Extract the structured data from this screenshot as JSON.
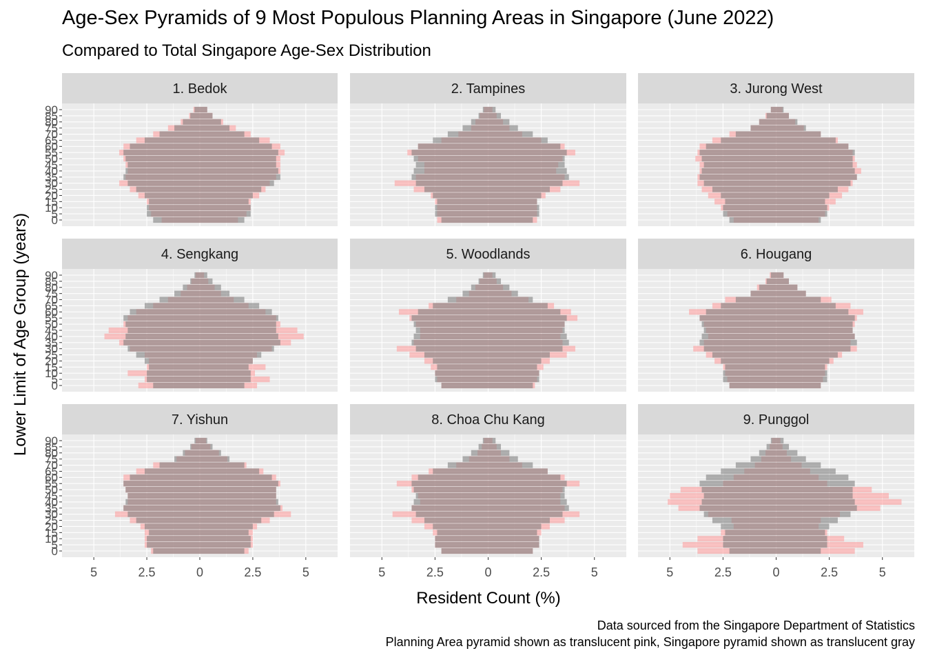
{
  "title": "Age-Sex Pyramids of 9 Most Populous Planning Areas in Singapore (June 2022)",
  "subtitle": "Compared to Total Singapore Age-Sex Distribution",
  "caption_lines": [
    "Data sourced from the Singapore Department of Statistics",
    "Planning Area pyramid shown as translucent pink, Singapore pyramid shown as translucent gray"
  ],
  "colors": {
    "area_fill": "#ff9999",
    "singapore_fill": "#808080",
    "overlap_fill": "#b08a8a",
    "panel_bg": "#ebebeb",
    "strip_bg": "#d9d9d9",
    "gridline": "#ffffff"
  },
  "chart_data": {
    "type": "bar",
    "orientation": "horizontal-pyramid",
    "xlabel": "Resident Count (%)",
    "ylabel": "Lower Limit of Age Group (years)",
    "xlim": [
      -6.5,
      6.5
    ],
    "x_ticks": [
      -5,
      -2.5,
      0,
      2.5,
      5
    ],
    "x_tick_labels": [
      "5",
      "2.5",
      "0",
      "2.5",
      "5"
    ],
    "age_groups": [
      0,
      5,
      10,
      15,
      20,
      25,
      30,
      35,
      40,
      45,
      50,
      55,
      60,
      65,
      70,
      75,
      80,
      85,
      90
    ],
    "y_tick_labels": [
      "0",
      "5",
      "10",
      "15",
      "20",
      "25",
      "30",
      "35",
      "40",
      "45",
      "50",
      "55",
      "60",
      "65",
      "70",
      "75",
      "80",
      "85",
      "90"
    ],
    "grid": true,
    "singapore": {
      "name": "Singapore",
      "left": [
        2.2,
        2.5,
        2.5,
        2.4,
        2.6,
        3.0,
        3.4,
        3.6,
        3.5,
        3.4,
        3.5,
        3.6,
        3.3,
        2.6,
        1.9,
        1.2,
        0.8,
        0.45,
        0.25
      ],
      "right": [
        2.1,
        2.4,
        2.4,
        2.3,
        2.5,
        2.9,
        3.5,
        3.8,
        3.7,
        3.6,
        3.6,
        3.7,
        3.4,
        2.8,
        2.1,
        1.4,
        1.0,
        0.6,
        0.35
      ]
    },
    "panels": [
      {
        "name": "1. Bedok",
        "left": [
          1.8,
          2.3,
          2.4,
          2.5,
          2.9,
          3.3,
          3.8,
          3.5,
          3.4,
          3.5,
          3.6,
          3.8,
          3.6,
          3.0,
          2.2,
          1.5,
          0.9,
          0.5,
          0.3
        ],
        "right": [
          1.8,
          2.2,
          2.4,
          2.4,
          2.8,
          3.1,
          3.3,
          3.6,
          3.8,
          3.8,
          3.8,
          4.0,
          3.8,
          3.3,
          2.4,
          1.7,
          1.1,
          0.6,
          0.35
        ]
      },
      {
        "name": "2. Tampines",
        "left": [
          2.4,
          2.4,
          2.4,
          2.5,
          2.7,
          3.5,
          4.4,
          3.4,
          3.0,
          3.0,
          3.3,
          3.8,
          3.3,
          2.2,
          1.4,
          0.8,
          0.6,
          0.4,
          0.2
        ],
        "right": [
          2.3,
          2.3,
          2.3,
          2.3,
          2.7,
          3.4,
          4.3,
          3.6,
          3.2,
          3.3,
          3.5,
          4.1,
          3.6,
          2.5,
          1.6,
          1.0,
          0.7,
          0.4,
          0.2
        ]
      },
      {
        "name": "3. Jurong West",
        "left": [
          2.0,
          2.3,
          2.6,
          2.9,
          3.2,
          3.5,
          3.7,
          3.7,
          3.6,
          3.6,
          3.8,
          3.7,
          3.6,
          3.0,
          2.2,
          1.2,
          0.8,
          0.5,
          0.25
        ],
        "right": [
          2.0,
          2.3,
          2.5,
          2.8,
          3.1,
          3.4,
          3.6,
          3.8,
          4.0,
          3.8,
          3.7,
          3.6,
          3.4,
          2.9,
          2.1,
          1.3,
          0.9,
          0.6,
          0.3
        ]
      },
      {
        "name": "4. Sengkang",
        "left": [
          2.9,
          2.6,
          3.4,
          2.5,
          2.4,
          2.6,
          3.3,
          3.8,
          4.5,
          4.3,
          3.6,
          3.4,
          3.0,
          2.2,
          1.5,
          0.9,
          0.6,
          0.4,
          0.2
        ],
        "right": [
          2.7,
          3.3,
          2.6,
          3.1,
          2.5,
          2.7,
          3.4,
          4.3,
          4.9,
          4.6,
          3.8,
          3.6,
          3.1,
          2.3,
          1.6,
          1.0,
          0.7,
          0.4,
          0.2
        ]
      },
      {
        "name": "5. Woodlands",
        "left": [
          2.2,
          2.4,
          2.5,
          2.7,
          3.0,
          3.7,
          4.3,
          3.5,
          3.2,
          3.2,
          3.4,
          3.7,
          4.2,
          2.8,
          1.5,
          0.9,
          0.6,
          0.4,
          0.2
        ],
        "right": [
          2.2,
          2.3,
          2.4,
          2.6,
          2.9,
          3.7,
          4.1,
          3.5,
          3.4,
          3.5,
          3.6,
          4.2,
          3.9,
          3.1,
          1.9,
          1.1,
          0.7,
          0.4,
          0.2
        ]
      },
      {
        "name": "6. Hougang",
        "left": [
          2.2,
          2.3,
          2.4,
          2.5,
          2.9,
          3.3,
          3.9,
          3.4,
          3.2,
          3.3,
          3.4,
          3.6,
          4.1,
          3.0,
          2.4,
          1.2,
          0.9,
          0.5,
          0.3
        ],
        "right": [
          2.1,
          2.2,
          2.3,
          2.4,
          2.7,
          3.1,
          3.8,
          3.5,
          3.7,
          3.6,
          3.7,
          3.8,
          4.1,
          3.5,
          2.6,
          1.4,
          1.0,
          0.6,
          0.35
        ]
      },
      {
        "name": "7. Yishun",
        "left": [
          2.3,
          2.6,
          2.6,
          2.6,
          2.8,
          3.3,
          4.0,
          3.6,
          3.4,
          3.4,
          3.5,
          3.6,
          3.6,
          3.0,
          2.2,
          1.1,
          0.7,
          0.4,
          0.2
        ],
        "right": [
          2.3,
          2.5,
          2.5,
          2.5,
          2.7,
          3.3,
          4.3,
          3.9,
          3.6,
          3.6,
          3.6,
          3.8,
          3.6,
          3.0,
          2.2,
          1.3,
          0.9,
          0.5,
          0.3
        ]
      },
      {
        "name": "8. Choa Chu Kang",
        "left": [
          2.2,
          2.5,
          2.5,
          2.6,
          3.0,
          3.6,
          4.5,
          3.6,
          3.2,
          3.3,
          3.6,
          4.3,
          3.6,
          2.8,
          1.5,
          0.9,
          0.5,
          0.3,
          0.2
        ],
        "right": [
          2.1,
          2.4,
          2.4,
          2.5,
          2.9,
          3.6,
          4.3,
          3.6,
          3.4,
          3.4,
          3.5,
          4.3,
          3.6,
          2.8,
          1.6,
          1.0,
          0.6,
          0.4,
          0.2
        ]
      },
      {
        "name": "9. Punggol",
        "left": [
          3.7,
          4.4,
          3.7,
          2.6,
          2.0,
          2.1,
          3.2,
          4.6,
          5.1,
          5.0,
          4.5,
          2.5,
          2.0,
          1.5,
          1.0,
          0.7,
          0.5,
          0.3,
          0.2
        ],
        "right": [
          3.7,
          4.1,
          3.2,
          2.4,
          2.0,
          2.1,
          3.0,
          4.9,
          5.9,
          5.3,
          4.5,
          2.4,
          2.0,
          1.6,
          1.2,
          0.7,
          0.5,
          0.3,
          0.2
        ]
      }
    ]
  }
}
